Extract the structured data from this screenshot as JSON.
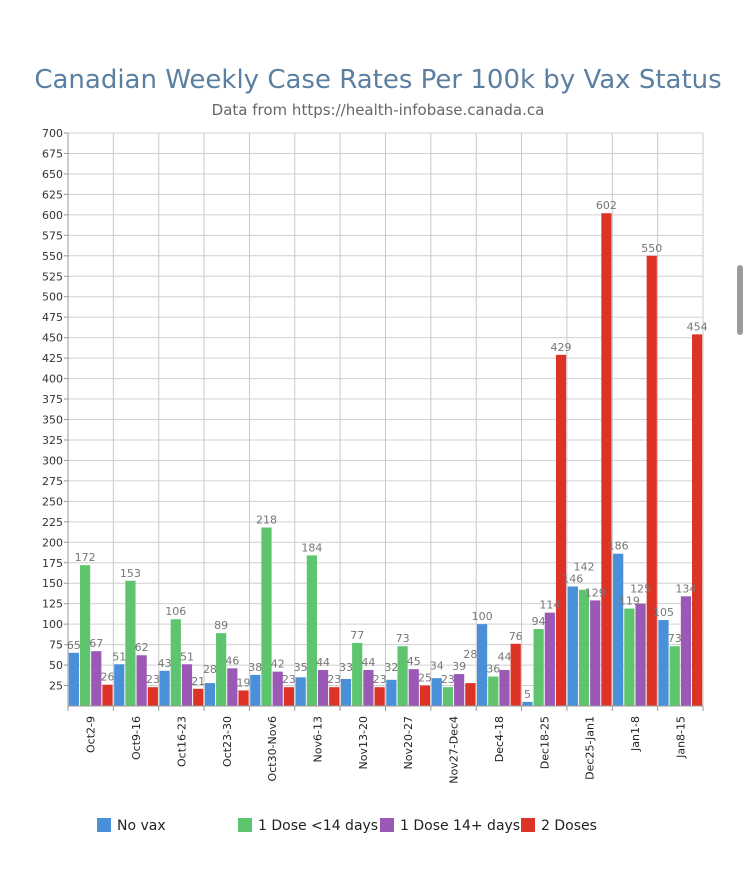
{
  "chart_data": {
    "type": "bar",
    "title": "Canadian Weekly Case Rates Per 100k by Vax Status",
    "subtitle": "Data from https://health-infobase.canada.ca",
    "xlabel": "",
    "ylabel": "",
    "ylim": [
      0,
      700
    ],
    "yticks": [
      25,
      50,
      75,
      100,
      125,
      150,
      175,
      200,
      225,
      250,
      275,
      300,
      325,
      350,
      375,
      400,
      425,
      450,
      475,
      500,
      525,
      550,
      575,
      600,
      625,
      650,
      675,
      700
    ],
    "grid": true,
    "legend_position": "bottom",
    "categories": [
      "Oct2-9",
      "Oct9-16",
      "Oct16-23",
      "Oct23-30",
      "Oct30-Nov6",
      "Nov6-13",
      "Nov13-20",
      "Nov20-27",
      "Nov27-Dec4",
      "Dec4-18",
      "Dec18-25",
      "Dec25-Jan1",
      "Jan1-8",
      "Jan8-15"
    ],
    "series": [
      {
        "name": "No vax",
        "color": "#4a90d9",
        "values": [
          65,
          51,
          43,
          28,
          38,
          35,
          33,
          32,
          34,
          100,
          5,
          146,
          186,
          105
        ]
      },
      {
        "name": "1 Dose <14 days",
        "color": "#5ec46e",
        "values": [
          172,
          153,
          106,
          89,
          218,
          184,
          77,
          73,
          23,
          36,
          94,
          142,
          119,
          73
        ]
      },
      {
        "name": "1 Dose 14+ days",
        "color": "#9b59b6",
        "values": [
          67,
          62,
          51,
          46,
          42,
          44,
          44,
          45,
          39,
          44,
          114,
          129,
          125,
          134
        ]
      },
      {
        "name": "2 Doses",
        "color": "#dd3327",
        "values": [
          26,
          23,
          21,
          19,
          23,
          23,
          23,
          25,
          28,
          76,
          429,
          602,
          550,
          454
        ]
      }
    ]
  }
}
